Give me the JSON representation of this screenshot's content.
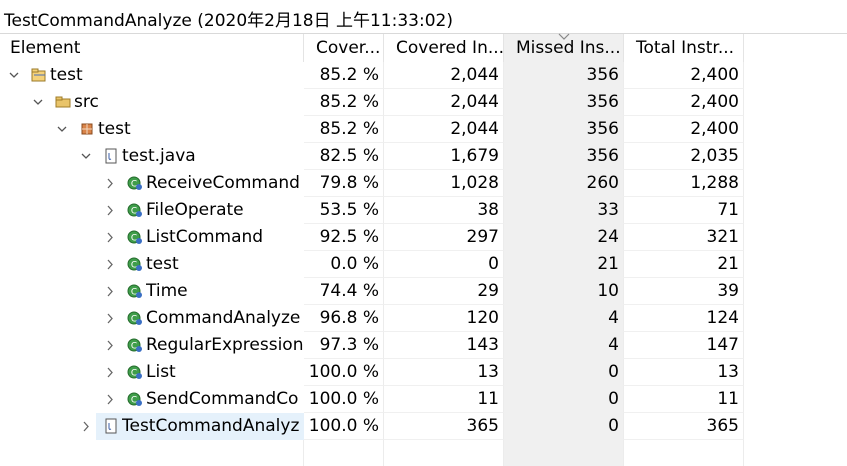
{
  "title": "TestCommandAnalyze (2020年2月18日 上午11:33:02)",
  "table": {
    "columns": [
      "Element",
      "Cover...",
      "Covered In...",
      "Missed Ins...",
      "Total Instr..."
    ],
    "rows": [
      [
        "test",
        "85.2 %",
        "2,044",
        "356",
        "2,400"
      ],
      [
        "src",
        "85.2 %",
        "2,044",
        "356",
        "2,400"
      ],
      [
        "test",
        "85.2 %",
        "2,044",
        "356",
        "2,400"
      ],
      [
        "test.java",
        "82.5 %",
        "1,679",
        "356",
        "2,035"
      ],
      [
        "ReceiveCommand",
        "79.8 %",
        "1,028",
        "260",
        "1,288"
      ],
      [
        "FileOperate",
        "53.5 %",
        "38",
        "33",
        "71"
      ],
      [
        "ListCommand",
        "92.5 %",
        "297",
        "24",
        "321"
      ],
      [
        "test",
        "0.0 %",
        "0",
        "21",
        "21"
      ],
      [
        "Time",
        "74.4 %",
        "29",
        "10",
        "39"
      ],
      [
        "CommandAnalyze",
        "96.8 %",
        "120",
        "4",
        "124"
      ],
      [
        "RegularExpression",
        "97.3 %",
        "143",
        "4",
        "147"
      ],
      [
        "List",
        "100.0 %",
        "13",
        "0",
        "13"
      ],
      [
        "SendCommandCo",
        "100.0 %",
        "11",
        "0",
        "11"
      ],
      [
        "TestCommandAnalyz",
        "100.0 %",
        "365",
        "0",
        "365"
      ]
    ]
  }
}
